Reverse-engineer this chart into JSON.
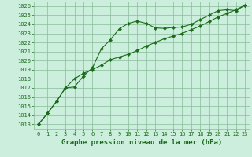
{
  "line1_x": [
    0,
    1,
    2,
    3,
    4,
    5,
    6,
    7,
    8,
    9,
    10,
    11,
    12,
    13,
    14,
    15,
    16,
    17,
    18,
    19,
    20,
    21,
    22,
    23
  ],
  "line1_y": [
    1013.0,
    1014.2,
    1015.5,
    1017.0,
    1017.1,
    1018.3,
    1019.2,
    1021.3,
    1022.3,
    1023.5,
    1024.1,
    1024.35,
    1024.1,
    1023.6,
    1023.55,
    1023.65,
    1023.7,
    1024.0,
    1024.5,
    1025.0,
    1025.5,
    1025.6,
    1025.5,
    1026.1
  ],
  "line2_x": [
    0,
    1,
    2,
    3,
    4,
    5,
    6,
    7,
    8,
    9,
    10,
    11,
    12,
    13,
    14,
    15,
    16,
    17,
    18,
    19,
    20,
    21,
    22,
    23
  ],
  "line2_y": [
    1013.0,
    1014.2,
    1015.5,
    1017.0,
    1018.0,
    1018.6,
    1019.0,
    1019.5,
    1020.1,
    1020.4,
    1020.7,
    1021.1,
    1021.6,
    1022.0,
    1022.4,
    1022.7,
    1023.0,
    1023.4,
    1023.8,
    1024.3,
    1024.8,
    1025.2,
    1025.6,
    1026.1
  ],
  "line_color": "#1a6b1a",
  "bg_color": "#cceedd",
  "grid_color": "#88bb99",
  "xlabel": "Graphe pression niveau de la mer (hPa)",
  "ylim_min": 1012.5,
  "ylim_max": 1026.5,
  "xlim_min": -0.5,
  "xlim_max": 23.5,
  "yticks": [
    1013,
    1014,
    1015,
    1016,
    1017,
    1018,
    1019,
    1020,
    1021,
    1022,
    1023,
    1024,
    1025,
    1026
  ],
  "xticks": [
    0,
    1,
    2,
    3,
    4,
    5,
    6,
    7,
    8,
    9,
    10,
    11,
    12,
    13,
    14,
    15,
    16,
    17,
    18,
    19,
    20,
    21,
    22,
    23
  ],
  "xlabel_fontsize": 6.5,
  "tick_fontsize": 5.0
}
